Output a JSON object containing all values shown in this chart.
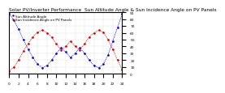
{
  "title": "Solar PV/Inverter Performance  Sun Altitude Angle & Sun Incidence Angle on PV Panels",
  "blue_label": "Sun Altitude Angle",
  "red_label": "Sun Incidence Angle on PV Panels",
  "x": [
    0,
    1,
    2,
    3,
    4,
    5,
    6,
    7,
    8,
    9,
    10,
    11,
    12,
    13,
    14,
    15,
    16,
    17,
    18,
    19,
    20,
    21,
    22,
    23,
    24
  ],
  "blue_y": [
    88,
    78,
    65,
    50,
    36,
    24,
    14,
    9,
    12,
    20,
    30,
    38,
    32,
    24,
    30,
    38,
    30,
    20,
    12,
    9,
    14,
    28,
    48,
    68,
    88
  ],
  "red_y": [
    4,
    10,
    20,
    33,
    44,
    54,
    61,
    64,
    60,
    54,
    44,
    35,
    40,
    48,
    40,
    35,
    44,
    54,
    60,
    64,
    61,
    50,
    36,
    20,
    6
  ],
  "blue_color": "#0000cc",
  "red_color": "#cc0000",
  "background_color": "#ffffff",
  "grid_color": "#aaaaaa",
  "ylim": [
    0,
    90
  ],
  "xlim": [
    0,
    24
  ],
  "ytick_values": [
    0,
    10,
    20,
    30,
    40,
    50,
    60,
    70,
    80,
    90
  ],
  "title_fontsize": 4.2,
  "tick_fontsize": 3.2
}
